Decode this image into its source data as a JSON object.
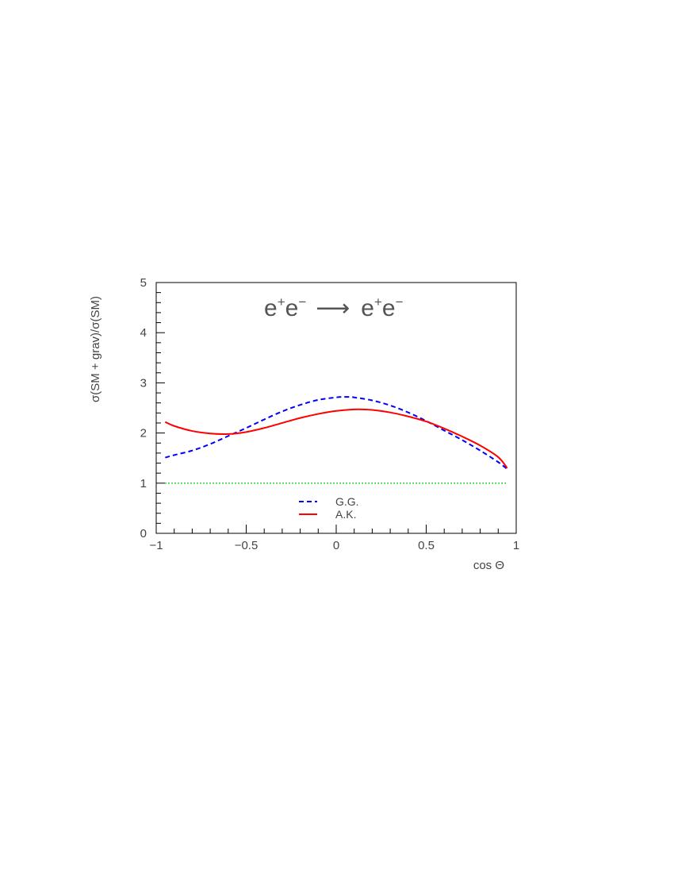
{
  "chart_data": {
    "type": "line",
    "title_parts": {
      "lhs_1": "e",
      "lhs_1_sup": "+",
      "lhs_2": "e",
      "lhs_2_sup": "−",
      "arrow": "⟶",
      "rhs_1": "e",
      "rhs_1_sup": "+",
      "rhs_2": "e",
      "rhs_2_sup": "−"
    },
    "xlabel": "cos Θ",
    "ylabel": "σ(SM + grav)/σ(SM)",
    "xlim": [
      -1,
      1
    ],
    "ylim": [
      0,
      5
    ],
    "x_ticks": [
      {
        "value": -1,
        "label": "−1"
      },
      {
        "value": -0.5,
        "label": "−0.5"
      },
      {
        "value": 0,
        "label": "0"
      },
      {
        "value": 0.5,
        "label": "0.5"
      },
      {
        "value": 1,
        "label": "1"
      }
    ],
    "y_ticks": [
      {
        "value": 0,
        "label": "0"
      },
      {
        "value": 1,
        "label": "1"
      },
      {
        "value": 2,
        "label": "2"
      },
      {
        "value": 3,
        "label": "3"
      },
      {
        "value": 4,
        "label": "4"
      },
      {
        "value": 5,
        "label": "5"
      }
    ],
    "legend_position": "lower-center",
    "series": [
      {
        "name": "G.G.",
        "color": "#0000ff",
        "style": "dashed",
        "x": [
          -0.95,
          -0.9,
          -0.8,
          -0.7,
          -0.6,
          -0.5,
          -0.4,
          -0.3,
          -0.2,
          -0.1,
          0.0,
          0.05,
          0.1,
          0.2,
          0.3,
          0.4,
          0.5,
          0.6,
          0.7,
          0.8,
          0.9,
          0.95
        ],
        "y": [
          1.51,
          1.56,
          1.65,
          1.78,
          1.94,
          2.1,
          2.27,
          2.43,
          2.56,
          2.66,
          2.71,
          2.72,
          2.71,
          2.65,
          2.55,
          2.41,
          2.24,
          2.05,
          1.86,
          1.65,
          1.42,
          1.28
        ]
      },
      {
        "name": "A.K.",
        "color": "#ff0000",
        "style": "solid",
        "x": [
          -0.95,
          -0.9,
          -0.8,
          -0.7,
          -0.6,
          -0.5,
          -0.4,
          -0.3,
          -0.2,
          -0.1,
          0.0,
          0.1,
          0.15,
          0.2,
          0.3,
          0.4,
          0.5,
          0.6,
          0.7,
          0.8,
          0.9,
          0.95
        ],
        "y": [
          2.22,
          2.14,
          2.04,
          1.99,
          1.98,
          2.02,
          2.1,
          2.2,
          2.3,
          2.38,
          2.44,
          2.47,
          2.47,
          2.46,
          2.41,
          2.33,
          2.23,
          2.09,
          1.93,
          1.75,
          1.52,
          1.3
        ]
      },
      {
        "name": "",
        "color": "#00cc00",
        "style": "dotted",
        "x": [
          -0.95,
          0.95
        ],
        "y": [
          1,
          1
        ]
      }
    ]
  }
}
